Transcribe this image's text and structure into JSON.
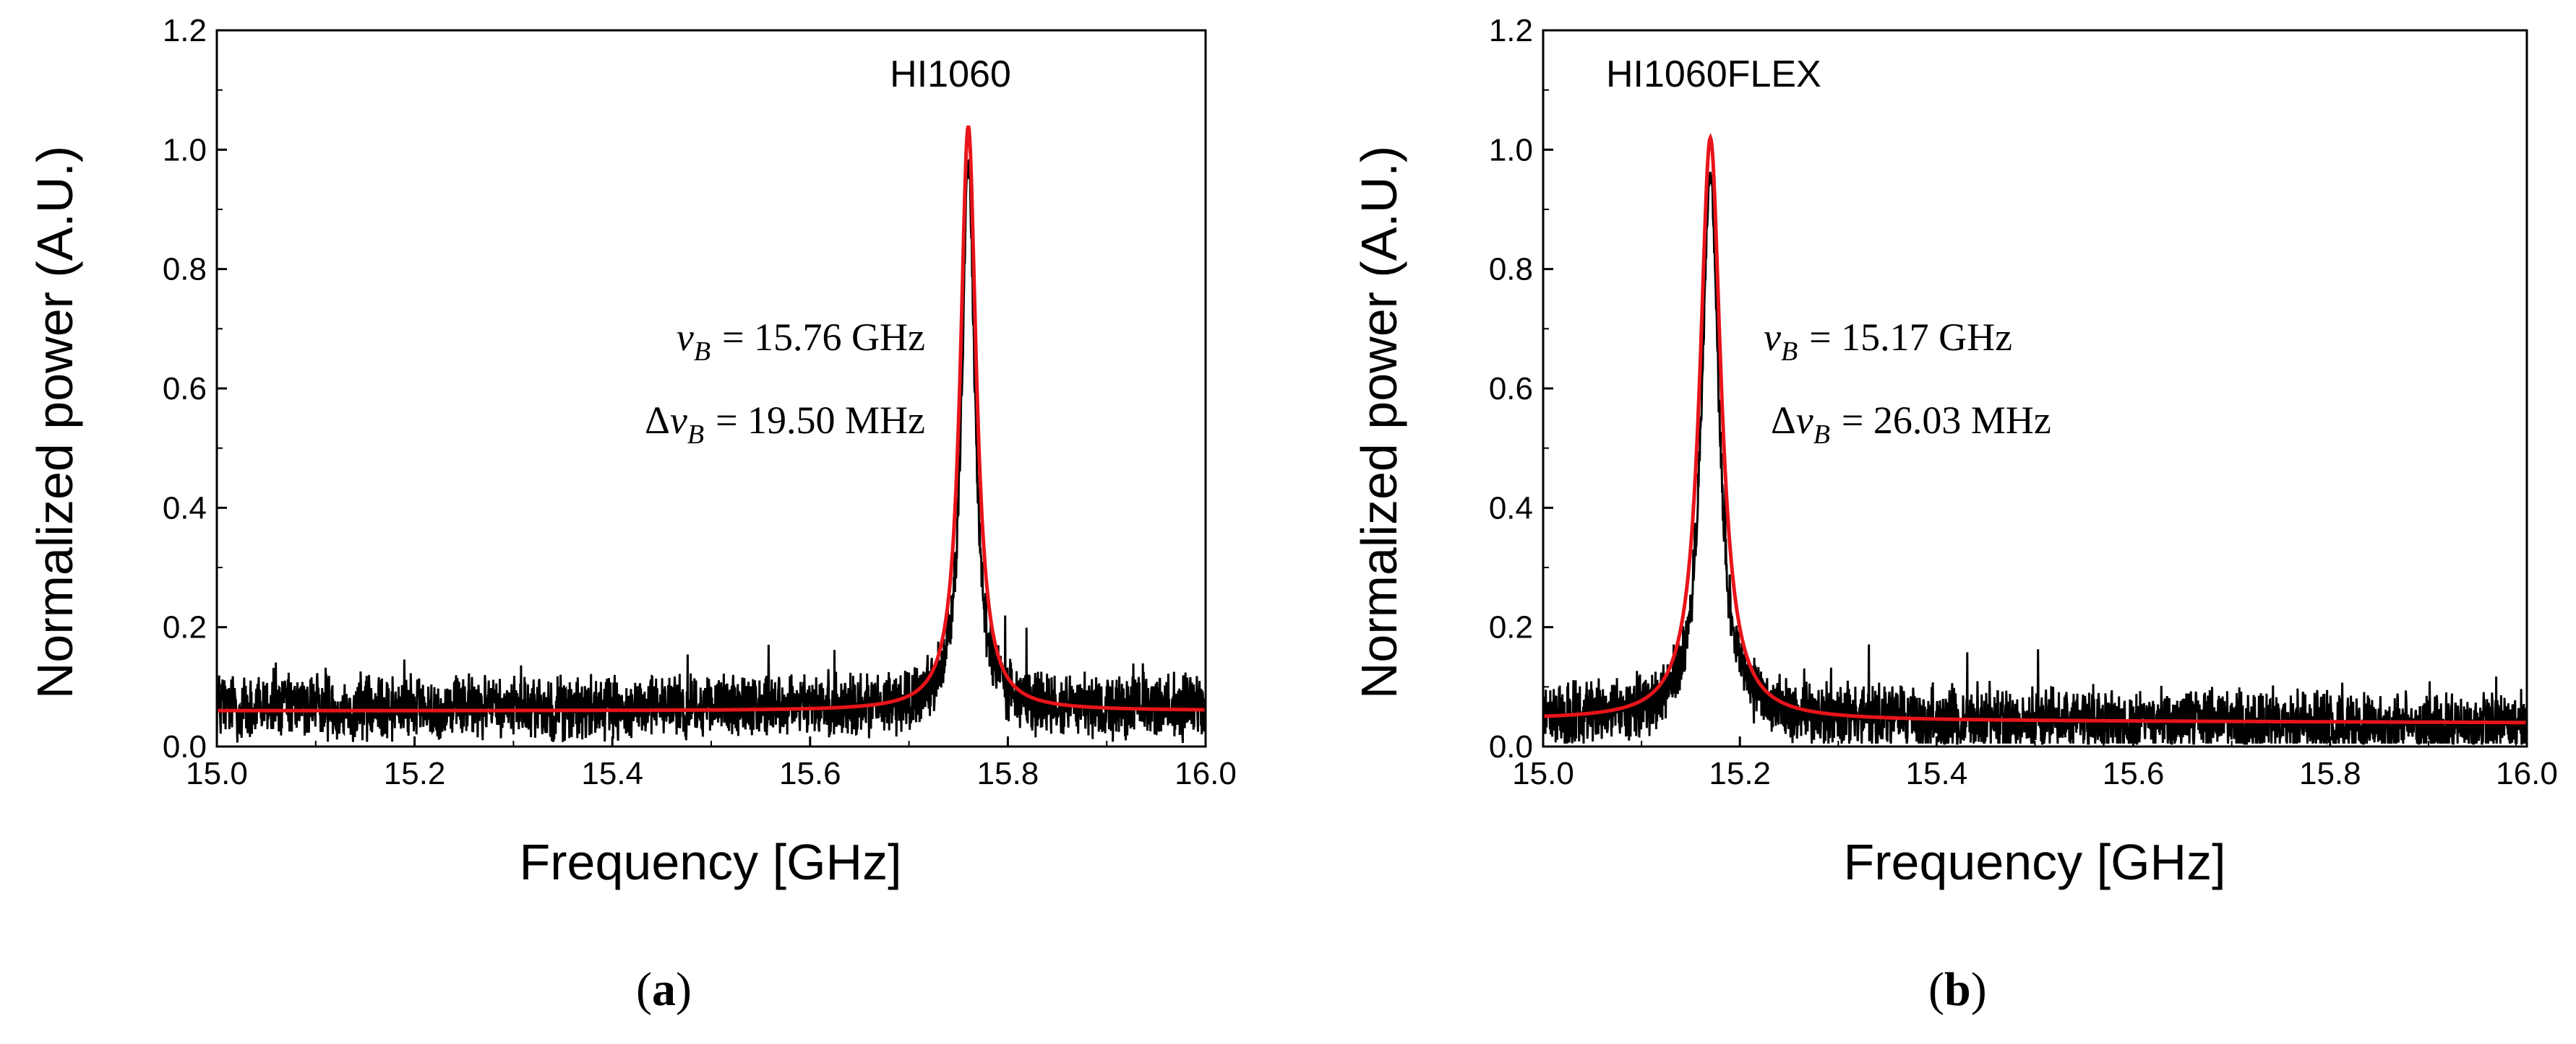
{
  "chart_data": [
    {
      "type": "line",
      "panel_label": "a",
      "inset_label": "HI1060",
      "xlabel": "Frequency [GHz]",
      "ylabel": "Normalized power (A.U.)",
      "xlim": [
        15.0,
        16.0
      ],
      "ylim": [
        0.0,
        1.2
      ],
      "xticks": [
        "15.0",
        "15.2",
        "15.4",
        "15.6",
        "15.8",
        "16.0"
      ],
      "yticks": [
        "0.0",
        "0.2",
        "0.4",
        "0.6",
        "0.8",
        "1.0",
        "1.2"
      ],
      "grid": false,
      "annotations": {
        "nu_value": "= 15.76 GHz",
        "dnu_value": "= 19.50 MHz"
      },
      "series": [
        {
          "role": "measured",
          "color": "#000000",
          "center": 15.76,
          "fwhm_ghz": 0.0195,
          "peak": 0.98,
          "baseline": 0.065
        },
        {
          "role": "fit",
          "color": "#e8141b",
          "center": 15.76,
          "fwhm_ghz": 0.0195,
          "peak": 1.04,
          "baseline": 0.06
        }
      ]
    },
    {
      "type": "line",
      "panel_label": "b",
      "inset_label": "HI1060FLEX",
      "xlabel": "Frequency [GHz]",
      "ylabel": "Normalized power (A.U.)",
      "xlim": [
        15.0,
        16.0
      ],
      "ylim": [
        0.0,
        1.2
      ],
      "xticks": [
        "15.0",
        "15.2",
        "15.4",
        "15.6",
        "15.8",
        "16.0"
      ],
      "yticks": [
        "0.0",
        "0.2",
        "0.4",
        "0.6",
        "0.8",
        "1.0",
        "1.2"
      ],
      "grid": false,
      "annotations": {
        "nu_value": "= 15.17 GHz",
        "dnu_value": "= 26.03 MHz"
      },
      "series": [
        {
          "role": "measured",
          "color": "#000000",
          "center": 15.17,
          "fwhm_ghz": 0.026,
          "peak": 0.96,
          "baseline": 0.05,
          "baseline_end": 0.035
        },
        {
          "role": "fit",
          "color": "#e8141b",
          "center": 15.17,
          "fwhm_ghz": 0.026,
          "peak": 1.02,
          "baseline": 0.045,
          "baseline_end": 0.04
        }
      ]
    }
  ]
}
